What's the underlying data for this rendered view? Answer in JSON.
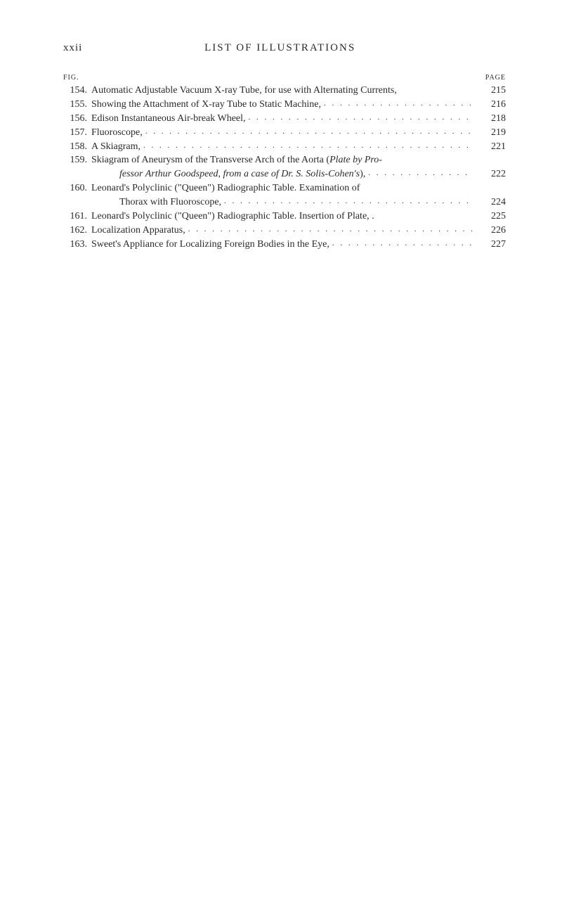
{
  "header": {
    "page_number": "xxii",
    "title": "LIST OF ILLUSTRATIONS"
  },
  "column_labels": {
    "fig": "FIG.",
    "page": "PAGE"
  },
  "entries": [
    {
      "num": "154.",
      "text": "Automatic Adjustable Vacuum X-ray Tube, for use with Alternating Currents,",
      "page": "215",
      "no_dots": true
    },
    {
      "num": "155.",
      "text": "Showing the Attachment of X-ray Tube to Static Machine,",
      "page": "216"
    },
    {
      "num": "156.",
      "text": "Edison Instantaneous Air-break Wheel,",
      "page": "218"
    },
    {
      "num": "157.",
      "text": "Fluoroscope,",
      "page": "219"
    },
    {
      "num": "158.",
      "text": "A Skiagram,",
      "page": "221"
    },
    {
      "num": "159.",
      "text_parts": [
        {
          "text": "Skiagram of Aneurysm of the Transverse Arch of the Aorta (",
          "italic": false
        },
        {
          "text": "Plate by Pro-",
          "italic": true
        }
      ],
      "continuation_parts": [
        {
          "text": "fessor Arthur Goodspeed, from a case of Dr. S. Solis-Cohen's",
          "italic": true
        },
        {
          "text": "),",
          "italic": false
        }
      ],
      "page": "222",
      "multiline": true
    },
    {
      "num": "160.",
      "text": "Leonard's Polyclinic (\"Queen\") Radiographic Table.   Examination of",
      "continuation": "Thorax with Fluoroscope,",
      "page": "224",
      "multiline": true,
      "first_no_dots": true
    },
    {
      "num": "161.",
      "text": "Leonard's Polyclinic (\"Queen\") Radiographic Table.   Insertion of Plate, .",
      "page": "225",
      "no_dots": true
    },
    {
      "num": "162.",
      "text": "Localization Apparatus,",
      "page": "226"
    },
    {
      "num": "163.",
      "text": "Sweet's Appliance for Localizing Foreign Bodies in the Eye,",
      "page": "227"
    }
  ],
  "styling": {
    "background_color": "#ffffff",
    "text_color": "#2a2a2a",
    "body_font_size": 14,
    "header_font_size": 15,
    "label_font_size": 10
  }
}
